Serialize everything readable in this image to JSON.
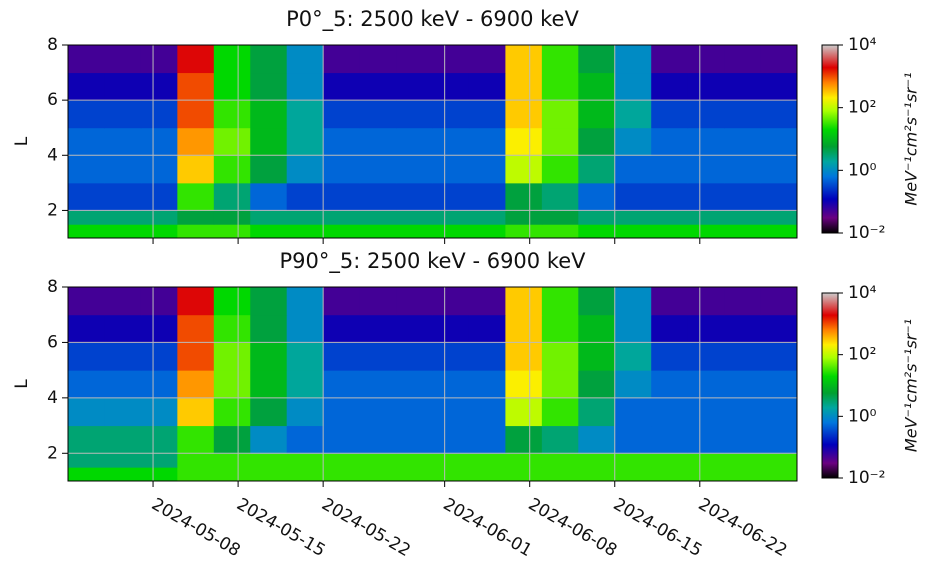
{
  "chart_data": [
    {
      "type": "heatmap",
      "title": "P0°_5: 2500 keV - 6900 keV",
      "ylabel": "L",
      "x_edges": [
        "2024-05-01",
        "2024-05-04",
        "2024-05-07",
        "2024-05-10",
        "2024-05-13",
        "2024-05-16",
        "2024-05-19",
        "2024-05-22",
        "2024-05-25",
        "2024-05-28",
        "2024-05-31",
        "2024-06-03",
        "2024-06-06",
        "2024-06-09",
        "2024-06-12",
        "2024-06-15",
        "2024-06-18",
        "2024-06-21",
        "2024-06-24",
        "2024-06-27",
        "2024-06-30"
      ],
      "y_edges": [
        1,
        1.5,
        2,
        3,
        4,
        5,
        6,
        7,
        8
      ],
      "values": [
        [
          20,
          20,
          20,
          30,
          30,
          20,
          20,
          20,
          20,
          20,
          20,
          20,
          30,
          30,
          20,
          20,
          20,
          20,
          20,
          20
        ],
        [
          3,
          3,
          3,
          5,
          5,
          3,
          3,
          3,
          3,
          3,
          3,
          3,
          5,
          5,
          3,
          3,
          3,
          3,
          3,
          3
        ],
        [
          0.3,
          0.3,
          0.3,
          30,
          3,
          0.5,
          0.3,
          0.3,
          0.3,
          0.3,
          0.3,
          0.3,
          5,
          3,
          0.5,
          0.3,
          0.3,
          0.3,
          0.3,
          0.3
        ],
        [
          0.5,
          0.5,
          0.5,
          300,
          30,
          5,
          1,
          0.5,
          0.5,
          0.5,
          0.5,
          0.5,
          100,
          30,
          3,
          0.5,
          0.5,
          0.5,
          0.5,
          0.5
        ],
        [
          0.5,
          0.5,
          0.5,
          500,
          50,
          10,
          2,
          0.5,
          0.5,
          0.5,
          0.5,
          0.5,
          200,
          50,
          5,
          1,
          0.5,
          0.5,
          0.5,
          0.5
        ],
        [
          0.3,
          0.3,
          0.3,
          1000,
          30,
          10,
          2,
          0.3,
          0.3,
          0.3,
          0.3,
          0.3,
          300,
          50,
          10,
          2,
          0.3,
          0.3,
          0.3,
          0.3
        ],
        [
          0.1,
          0.1,
          0.1,
          1000,
          20,
          5,
          1,
          0.1,
          0.1,
          0.1,
          0.1,
          0.1,
          300,
          30,
          10,
          1,
          0.1,
          0.1,
          0.1,
          0.1
        ],
        [
          0.05,
          0.05,
          0.05,
          2000,
          20,
          5,
          1,
          0.05,
          0.05,
          0.05,
          0.05,
          0.05,
          300,
          30,
          5,
          1,
          0.05,
          0.05,
          0.05,
          0.05
        ]
      ],
      "xlim": [
        "2024-05-01",
        "2024-06-30"
      ],
      "ylim": [
        1,
        8
      ],
      "yticks": [
        2,
        4,
        6,
        8
      ],
      "grid": true,
      "clim": [
        0.01,
        10000
      ],
      "log": true,
      "clabel": "MeV⁻¹cm²s⁻¹sr⁻¹",
      "cticks": [
        {
          "value": 0.01,
          "label": "10⁻²"
        },
        {
          "value": 1,
          "label": "10⁰"
        },
        {
          "value": 100,
          "label": "10²"
        },
        {
          "value": 10000,
          "label": "10⁴"
        }
      ]
    },
    {
      "type": "heatmap",
      "title": "P90°_5: 2500 keV - 6900 keV",
      "ylabel": "L",
      "x_edges": [
        "2024-05-01",
        "2024-05-04",
        "2024-05-07",
        "2024-05-10",
        "2024-05-13",
        "2024-05-16",
        "2024-05-19",
        "2024-05-22",
        "2024-05-25",
        "2024-05-28",
        "2024-05-31",
        "2024-06-03",
        "2024-06-06",
        "2024-06-09",
        "2024-06-12",
        "2024-06-15",
        "2024-06-18",
        "2024-06-21",
        "2024-06-24",
        "2024-06-27",
        "2024-06-30"
      ],
      "y_edges": [
        1,
        1.5,
        2,
        3,
        4,
        5,
        6,
        7,
        8
      ],
      "values": [
        [
          20,
          20,
          20,
          30,
          30,
          30,
          30,
          30,
          30,
          30,
          30,
          30,
          30,
          30,
          30,
          30,
          30,
          30,
          30,
          30
        ],
        [
          3,
          3,
          3,
          30,
          30,
          30,
          30,
          30,
          30,
          30,
          30,
          30,
          30,
          30,
          30,
          30,
          30,
          30,
          30,
          30
        ],
        [
          3,
          3,
          3,
          30,
          5,
          1,
          0.5,
          0.5,
          0.5,
          0.5,
          0.5,
          0.5,
          5,
          3,
          1,
          0.5,
          0.5,
          0.5,
          0.5,
          0.5
        ],
        [
          1,
          1,
          1,
          300,
          30,
          5,
          1,
          0.5,
          0.5,
          0.5,
          0.5,
          0.5,
          100,
          30,
          3,
          0.5,
          0.5,
          0.5,
          0.5,
          0.5
        ],
        [
          0.5,
          0.5,
          0.5,
          500,
          50,
          10,
          2,
          0.5,
          0.5,
          0.5,
          0.5,
          0.5,
          200,
          50,
          5,
          1,
          0.5,
          0.5,
          0.5,
          0.5
        ],
        [
          0.3,
          0.3,
          0.3,
          1000,
          50,
          10,
          2,
          0.3,
          0.3,
          0.3,
          0.3,
          0.3,
          300,
          50,
          10,
          2,
          0.3,
          0.3,
          0.3,
          0.3
        ],
        [
          0.1,
          0.1,
          0.1,
          1000,
          30,
          5,
          1,
          0.1,
          0.1,
          0.1,
          0.1,
          0.1,
          300,
          30,
          10,
          1,
          0.1,
          0.1,
          0.1,
          0.1
        ],
        [
          0.05,
          0.05,
          0.05,
          2000,
          20,
          5,
          1,
          0.05,
          0.05,
          0.05,
          0.05,
          0.05,
          300,
          30,
          5,
          1,
          0.05,
          0.05,
          0.05,
          0.05
        ]
      ],
      "xlim": [
        "2024-05-01",
        "2024-06-30"
      ],
      "ylim": [
        1,
        8
      ],
      "yticks": [
        2,
        4,
        6,
        8
      ],
      "grid": true,
      "xticks": [
        "2024-05-08",
        "2024-05-15",
        "2024-05-22",
        "2024-06-01",
        "2024-06-08",
        "2024-06-15",
        "2024-06-22"
      ],
      "clim": [
        0.01,
        10000
      ],
      "log": true,
      "clabel": "MeV⁻¹cm²s⁻¹sr⁻¹",
      "cticks": [
        {
          "value": 0.01,
          "label": "10⁻²"
        },
        {
          "value": 1,
          "label": "10⁰"
        },
        {
          "value": 100,
          "label": "10²"
        },
        {
          "value": 10000,
          "label": "10⁴"
        }
      ]
    }
  ]
}
